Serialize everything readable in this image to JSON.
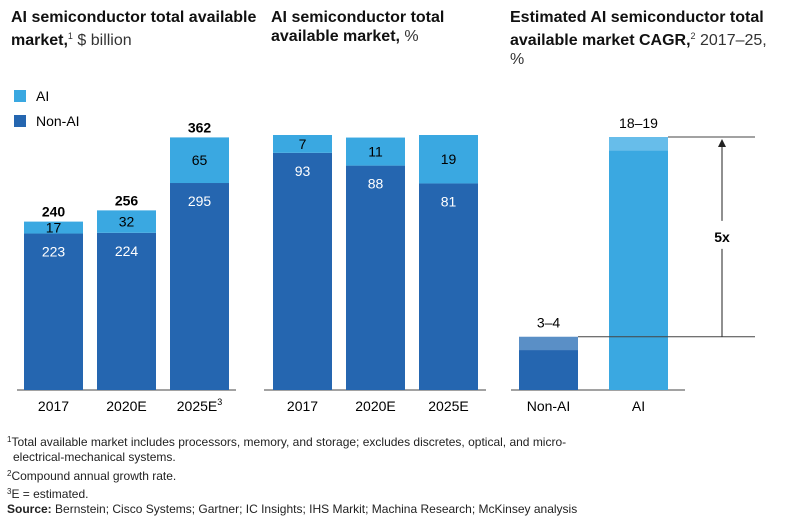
{
  "titles": {
    "chart1_main": "AI semiconductor total available market,",
    "chart1_sup": "1",
    "chart1_unit": "$ billion",
    "chart2_main": "AI semiconductor total available market,",
    "chart2_unit": "%",
    "chart3_main": "Estimated AI semiconductor total available market CAGR,",
    "chart3_sup": "2",
    "chart3_unit": "2017–25,",
    "chart3_unit2": "%"
  },
  "legend": [
    {
      "label": "AI",
      "color": "#3AA8E1"
    },
    {
      "label": "Non-AI",
      "color": "#2566B0"
    }
  ],
  "colors": {
    "ai": "#3AA8E1",
    "non_ai": "#2566B0",
    "ai_light": "#67BDEA",
    "non_ai_light": "#5A8FC6",
    "axis": "#444444"
  },
  "chart_data": [
    {
      "type": "bar",
      "stacked": true,
      "title": "AI semiconductor total available market, $ billion",
      "categories": [
        "2017",
        "2020E",
        "2025E"
      ],
      "category_sup": [
        "",
        "",
        "3"
      ],
      "series": [
        {
          "name": "Non-AI",
          "values": [
            223,
            224,
            295
          ]
        },
        {
          "name": "AI",
          "values": [
            17,
            32,
            65
          ]
        }
      ],
      "totals": [
        240,
        256,
        362
      ],
      "ylim": [
        0,
        362
      ]
    },
    {
      "type": "bar",
      "stacked": true,
      "title": "AI semiconductor total available market, %",
      "categories": [
        "2017",
        "2020E",
        "2025E"
      ],
      "series": [
        {
          "name": "Non-AI",
          "values": [
            93,
            88,
            81
          ]
        },
        {
          "name": "AI",
          "values": [
            7,
            11,
            19
          ]
        }
      ],
      "ylim": [
        0,
        100
      ]
    },
    {
      "type": "bar",
      "title": "Estimated AI semiconductor total available market CAGR, 2017–25, %",
      "categories": [
        "Non-AI",
        "AI"
      ],
      "ranges": [
        [
          3,
          4
        ],
        [
          18,
          19
        ]
      ],
      "labels": [
        "3–4",
        "18–19"
      ],
      "multiplier": "5x",
      "ylim": [
        0,
        19
      ]
    }
  ],
  "footnotes": [
    {
      "sup": "1",
      "text": "Total available market includes processors, memory, and storage; excludes discretes, optical, and micro-"
    },
    {
      "sup": "",
      "text": "electrical-mechanical systems."
    },
    {
      "sup": "2",
      "text": "Compound annual growth rate."
    },
    {
      "sup": "3",
      "text": "E = estimated."
    }
  ],
  "source": {
    "label": "Source:",
    "text": "Bernstein; Cisco Systems; Gartner; IC Insights; IHS Markit; Machina Research; McKinsey analysis"
  }
}
